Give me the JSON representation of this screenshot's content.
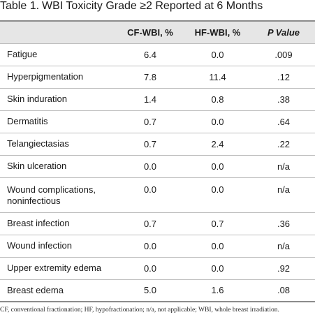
{
  "caption": {
    "label": "Table 1.",
    "title": "WBI Toxicity Grade ≥2 Reported at 6 Months"
  },
  "table": {
    "headers": [
      "",
      "CF-WBI, %",
      "HF-WBI, %",
      "P Value"
    ],
    "rows": [
      {
        "name": "Fatigue",
        "cf": "6.4",
        "hf": "0.0",
        "p": ".009"
      },
      {
        "name": "Hyperpigmentation",
        "cf": "7.8",
        "hf": "11.4",
        "p": ".12"
      },
      {
        "name": "Skin induration",
        "cf": "1.4",
        "hf": "0.8",
        "p": ".38"
      },
      {
        "name": "Dermatitis",
        "cf": "0.7",
        "hf": "0.0",
        "p": ".64"
      },
      {
        "name": "Telangiectasias",
        "cf": "0.7",
        "hf": "2.4",
        "p": ".22"
      },
      {
        "name": "Skin ulceration",
        "cf": "0.0",
        "hf": "0.0",
        "p": "n/a"
      },
      {
        "name": "Wound complications, noninfectious",
        "cf": "0.0",
        "hf": "0.0",
        "p": "n/a"
      },
      {
        "name": "Breast infection",
        "cf": "0.7",
        "hf": "0.7",
        "p": ".36"
      },
      {
        "name": "Wound infection",
        "cf": "0.0",
        "hf": "0.0",
        "p": "n/a"
      },
      {
        "name": "Upper extremity edema",
        "cf": "0.0",
        "hf": "0.0",
        "p": ".92"
      },
      {
        "name": "Breast edema",
        "cf": "5.0",
        "hf": "1.6",
        "p": ".08"
      }
    ]
  },
  "footnote": "CF, conventional fractionation; HF, hypofractionation; n/a, not applicable; WBI, whole breast irradiation."
}
